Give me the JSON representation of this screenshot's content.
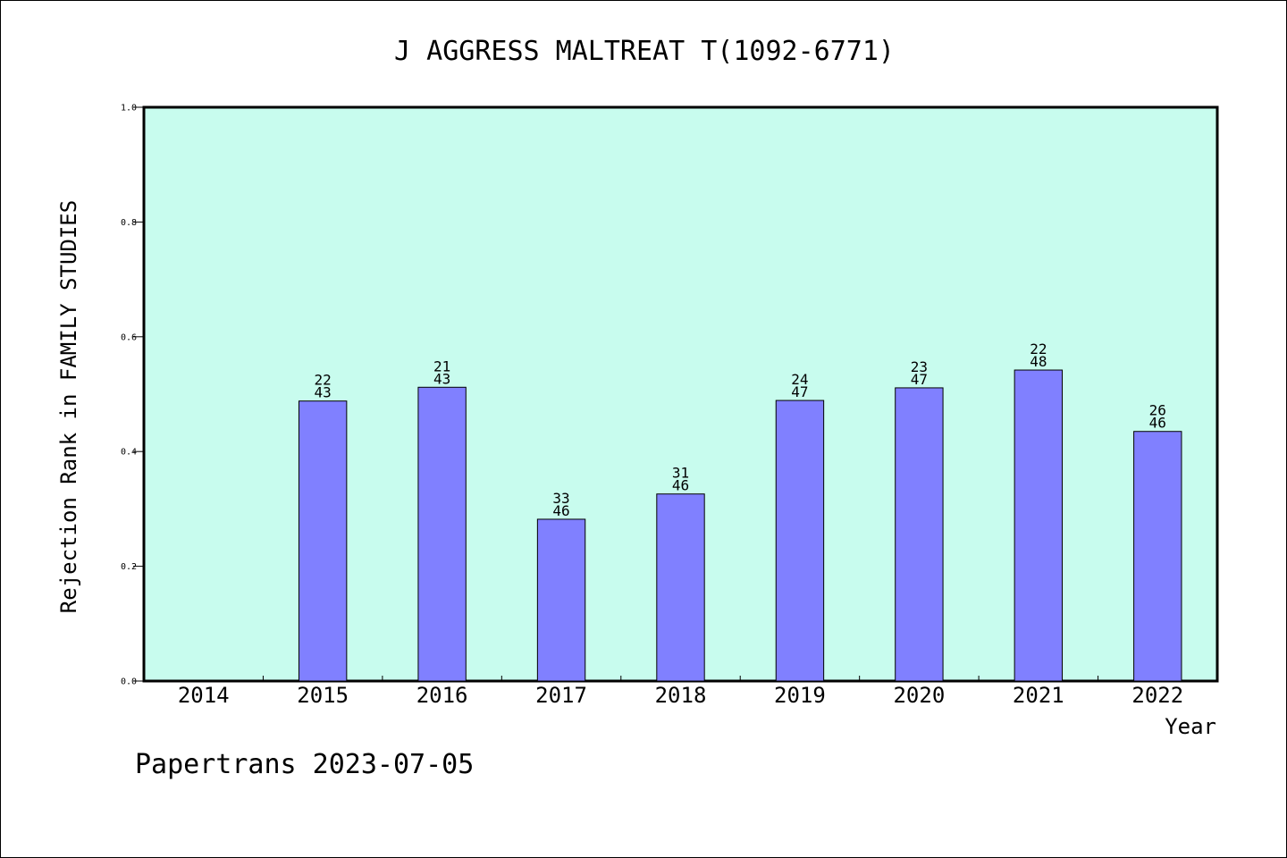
{
  "chart_data": {
    "type": "bar",
    "title": "J AGGRESS MALTREAT T(1092-6771)",
    "xlabel": "Year",
    "ylabel": "Rejection Rank in FAMILY STUDIES",
    "categories": [
      "2014",
      "2015",
      "2016",
      "2017",
      "2018",
      "2019",
      "2020",
      "2021",
      "2022"
    ],
    "values": [
      null,
      0.488,
      0.512,
      0.282,
      0.326,
      0.489,
      0.511,
      0.542,
      0.435
    ],
    "bar_labels": [
      null,
      [
        "22",
        "43"
      ],
      [
        "21",
        "43"
      ],
      [
        "33",
        "46"
      ],
      [
        "31",
        "46"
      ],
      [
        "24",
        "47"
      ],
      [
        "23",
        "47"
      ],
      [
        "22",
        "48"
      ],
      [
        "26",
        "46"
      ]
    ],
    "ylim": [
      0,
      1.0
    ],
    "yticks": [
      "0.0",
      "0.2",
      "0.4",
      "0.6",
      "0.8",
      "1.0"
    ],
    "grid": false,
    "colors": {
      "plot_background": "#c8fcee",
      "bar_fill": "#8080ff",
      "bar_stroke": "#000000"
    }
  },
  "footer": {
    "text": "Papertrans 2023-07-05"
  }
}
